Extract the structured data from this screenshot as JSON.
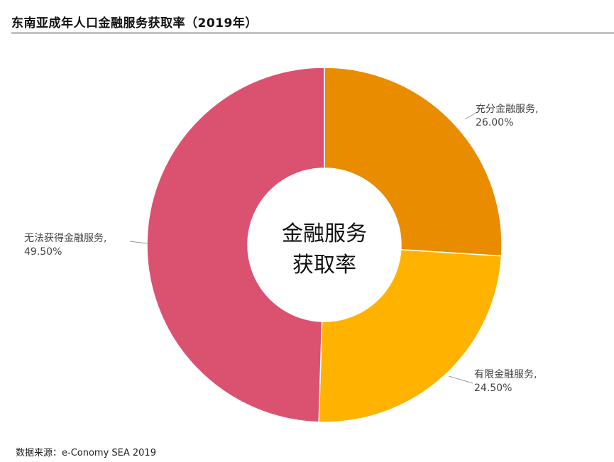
{
  "title": "东南亚成年人口金融服务获取率（2019年）",
  "source": "数据来源：e-Conomy SEA 2019",
  "chart_data": {
    "type": "pie",
    "style": "donut",
    "title": "东南亚成年人口金融服务获取率（2019年）",
    "center_label": [
      "金融服务",
      "获取率"
    ],
    "slices": [
      {
        "name": "充分金融服务",
        "value": 26.0,
        "label": "26.00%",
        "color": "#E98C00"
      },
      {
        "name": "有限金融服务",
        "value": 24.5,
        "label": "24.50%",
        "color": "#FFB300"
      },
      {
        "name": "无法获得金融服务",
        "value": 49.5,
        "label": "49.50%",
        "color": "#DB5270"
      }
    ],
    "legend": "none"
  }
}
